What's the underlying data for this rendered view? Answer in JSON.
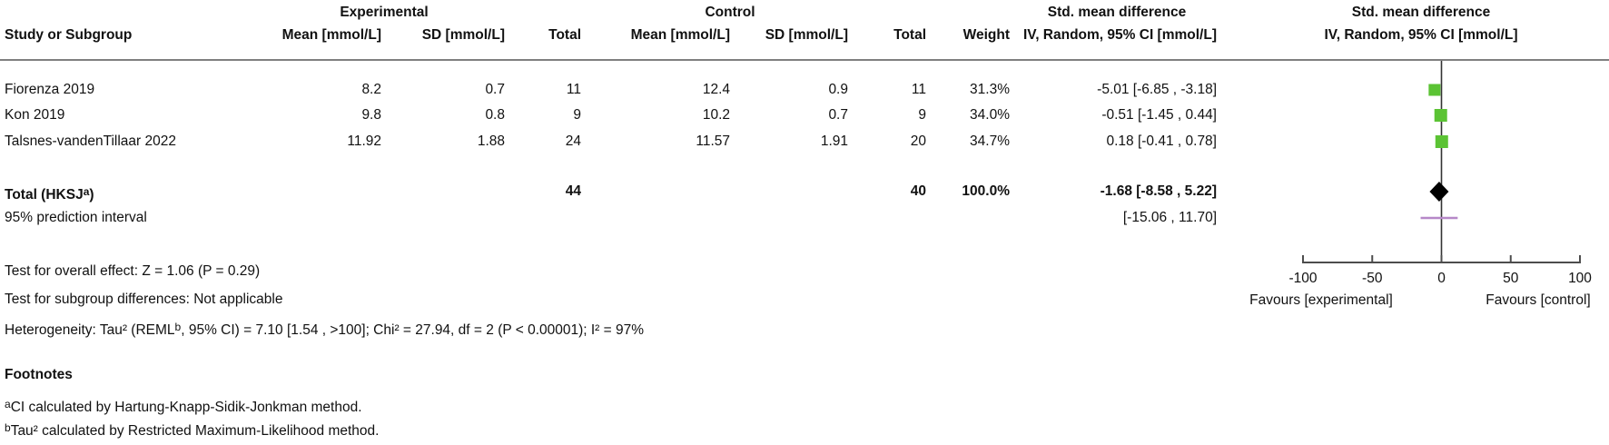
{
  "header": {
    "study_col": "Study or Subgroup",
    "exp_group": "Experimental",
    "ctrl_group": "Control",
    "mean_col": "Mean [mmol/L]",
    "sd_col": "SD [mmol/L]",
    "total_col": "Total",
    "weight_col": "Weight",
    "smd_line1": "Std. mean difference",
    "smd_line2": "IV, Random, 95% CI [mmol/L]",
    "plot_line1": "Std. mean difference",
    "plot_line2": "IV, Random, 95% CI [mmol/L]"
  },
  "studies": [
    {
      "name": "Fiorenza 2019",
      "exp_mean": "8.2",
      "exp_sd": "0.7",
      "exp_total": "11",
      "ctrl_mean": "12.4",
      "ctrl_sd": "0.9",
      "ctrl_total": "11",
      "weight": "31.3%",
      "ci_text": "-5.01 [-6.85 , -3.18]"
    },
    {
      "name": "Kon 2019",
      "exp_mean": "9.8",
      "exp_sd": "0.8",
      "exp_total": "9",
      "ctrl_mean": "10.2",
      "ctrl_sd": "0.7",
      "ctrl_total": "9",
      "weight": "34.0%",
      "ci_text": "-0.51 [-1.45 , 0.44]"
    },
    {
      "name": "Talsnes-vandenTillaar 2022",
      "exp_mean": "11.92",
      "exp_sd": "1.88",
      "exp_total": "24",
      "ctrl_mean": "11.57",
      "ctrl_sd": "1.91",
      "ctrl_total": "20",
      "weight": "34.7%",
      "ci_text": "0.18 [-0.41 , 0.78]"
    }
  ],
  "total_row": {
    "label_pre": "Total (HKSJ",
    "label_sup": "a",
    "label_post": ")",
    "exp_total": "44",
    "ctrl_total": "40",
    "weight": "100.0%",
    "ci_text": "-1.68 [-8.58 , 5.22]"
  },
  "prediction_row": {
    "label": "95% prediction interval",
    "ci_text": "[-15.06 , 11.70]"
  },
  "stats": {
    "overall_effect": "Test for overall effect: Z = 1.06 (P = 0.29)",
    "subgroup_diff": "Test for subgroup differences: Not applicable",
    "heterogeneity_pre": "Heterogeneity: Tau² (REML",
    "heterogeneity_sup": "b",
    "heterogeneity_post": ", 95% CI) = 7.10 [1.54 , >100]; Chi² = 27.94, df = 2 (P < 0.00001); I² = 97%"
  },
  "footnotes": {
    "heading": "Footnotes",
    "items": [
      {
        "marker": "a",
        "text": "CI calculated by Hartung-Knapp-Sidik-Jonkman method."
      },
      {
        "marker": "b",
        "text": "Tau² calculated by Restricted Maximum-Likelihood method."
      }
    ]
  },
  "chart_data": {
    "type": "forest",
    "title": "Std. mean difference, IV, Random, 95% CI [mmol/L]",
    "x_axis": {
      "range": [
        -100,
        100
      ],
      "ticks": [
        -100,
        -50,
        0,
        50,
        100
      ],
      "favours_left": "Favours [experimental]",
      "favours_right": "Favours [control]"
    },
    "studies": [
      {
        "name": "Fiorenza 2019",
        "smd": -5.01,
        "ci_low": -6.85,
        "ci_high": -3.18,
        "weight_pct": 31.3
      },
      {
        "name": "Kon 2019",
        "smd": -0.51,
        "ci_low": -1.45,
        "ci_high": 0.44,
        "weight_pct": 34.0
      },
      {
        "name": "Talsnes-vandenTillaar 2022",
        "smd": 0.18,
        "ci_low": -0.41,
        "ci_high": 0.78,
        "weight_pct": 34.7
      }
    ],
    "total": {
      "smd": -1.68,
      "ci_low": -8.58,
      "ci_high": 5.22
    },
    "prediction_interval": {
      "low": -15.06,
      "high": 11.7
    },
    "colors": {
      "square": "#5bc334",
      "diamond": "#000000",
      "prediction_line": "#b688c8",
      "axis": "#4d4d4d",
      "zero_line": "#333333"
    }
  }
}
